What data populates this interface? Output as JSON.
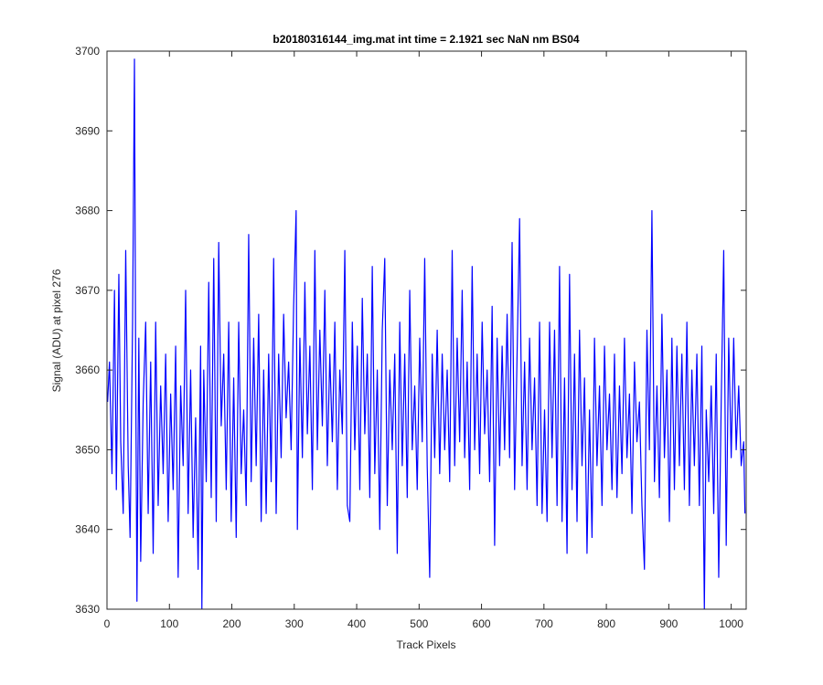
{
  "chart_data": {
    "type": "line",
    "title": "b20180316144_img.mat int time = 2.1921 sec  NaN nm BS04",
    "xlabel": "Track Pixels",
    "ylabel": "Signal (ADU) at pixel 276",
    "xlim": [
      0,
      1024
    ],
    "ylim": [
      3630,
      3700
    ],
    "xticks": [
      0,
      100,
      200,
      300,
      400,
      500,
      600,
      700,
      800,
      900,
      1000
    ],
    "yticks": [
      3630,
      3640,
      3650,
      3660,
      3670,
      3680,
      3690,
      3700
    ],
    "grid": false,
    "legend": "none",
    "series": [
      {
        "color": "#0000ff",
        "description": "approximately 1024 samples of noisy signal, mean ~3655 ADU, std ~7 ADU",
        "x_start": 1,
        "x_step": 1,
        "points": [
          [
            1,
            3656
          ],
          [
            4,
            3661
          ],
          [
            8,
            3647
          ],
          [
            12,
            3670
          ],
          [
            15,
            3645
          ],
          [
            19,
            3672
          ],
          [
            22,
            3651
          ],
          [
            26,
            3642
          ],
          [
            30,
            3675
          ],
          [
            34,
            3648
          ],
          [
            37,
            3639
          ],
          [
            41,
            3666
          ],
          [
            44,
            3699
          ],
          [
            46,
            3660
          ],
          [
            48,
            3631
          ],
          [
            51,
            3664
          ],
          [
            54,
            3636
          ],
          [
            58,
            3656
          ],
          [
            62,
            3666
          ],
          [
            66,
            3642
          ],
          [
            70,
            3661
          ],
          [
            74,
            3637
          ],
          [
            78,
            3666
          ],
          [
            82,
            3643
          ],
          [
            86,
            3658
          ],
          [
            90,
            3647
          ],
          [
            94,
            3662
          ],
          [
            98,
            3641
          ],
          [
            102,
            3657
          ],
          [
            106,
            3645
          ],
          [
            110,
            3663
          ],
          [
            114,
            3634
          ],
          [
            118,
            3658
          ],
          [
            122,
            3648
          ],
          [
            126,
            3670
          ],
          [
            130,
            3642
          ],
          [
            134,
            3660
          ],
          [
            138,
            3639
          ],
          [
            142,
            3654
          ],
          [
            146,
            3635
          ],
          [
            150,
            3663
          ],
          [
            152,
            3630
          ],
          [
            155,
            3660
          ],
          [
            159,
            3646
          ],
          [
            163,
            3671
          ],
          [
            167,
            3644
          ],
          [
            171,
            3674
          ],
          [
            175,
            3641
          ],
          [
            179,
            3676
          ],
          [
            183,
            3653
          ],
          [
            187,
            3662
          ],
          [
            191,
            3645
          ],
          [
            195,
            3666
          ],
          [
            199,
            3641
          ],
          [
            203,
            3659
          ],
          [
            207,
            3639
          ],
          [
            211,
            3666
          ],
          [
            215,
            3647
          ],
          [
            219,
            3655
          ],
          [
            223,
            3643
          ],
          [
            227,
            3677
          ],
          [
            231,
            3646
          ],
          [
            235,
            3664
          ],
          [
            239,
            3648
          ],
          [
            243,
            3667
          ],
          [
            247,
            3641
          ],
          [
            251,
            3660
          ],
          [
            255,
            3642
          ],
          [
            259,
            3662
          ],
          [
            263,
            3646
          ],
          [
            267,
            3674
          ],
          [
            271,
            3642
          ],
          [
            275,
            3662
          ],
          [
            279,
            3649
          ],
          [
            283,
            3667
          ],
          [
            287,
            3654
          ],
          [
            291,
            3661
          ],
          [
            295,
            3650
          ],
          [
            299,
            3668
          ],
          [
            303,
            3680
          ],
          [
            305,
            3640
          ],
          [
            309,
            3664
          ],
          [
            313,
            3649
          ],
          [
            317,
            3671
          ],
          [
            321,
            3652
          ],
          [
            325,
            3663
          ],
          [
            329,
            3645
          ],
          [
            333,
            3675
          ],
          [
            337,
            3650
          ],
          [
            341,
            3665
          ],
          [
            345,
            3653
          ],
          [
            349,
            3670
          ],
          [
            353,
            3648
          ],
          [
            357,
            3662
          ],
          [
            361,
            3651
          ],
          [
            365,
            3666
          ],
          [
            369,
            3645
          ],
          [
            373,
            3660
          ],
          [
            377,
            3652
          ],
          [
            381,
            3675
          ],
          [
            385,
            3643
          ],
          [
            389,
            3641
          ],
          [
            393,
            3666
          ],
          [
            397,
            3650
          ],
          [
            401,
            3663
          ],
          [
            405,
            3645
          ],
          [
            409,
            3669
          ],
          [
            413,
            3652
          ],
          [
            417,
            3662
          ],
          [
            421,
            3644
          ],
          [
            425,
            3673
          ],
          [
            429,
            3647
          ],
          [
            433,
            3660
          ],
          [
            437,
            3640
          ],
          [
            441,
            3665
          ],
          [
            445,
            3674
          ],
          [
            449,
            3643
          ],
          [
            453,
            3660
          ],
          [
            457,
            3650
          ],
          [
            461,
            3662
          ],
          [
            465,
            3637
          ],
          [
            469,
            3666
          ],
          [
            473,
            3648
          ],
          [
            477,
            3662
          ],
          [
            481,
            3644
          ],
          [
            485,
            3670
          ],
          [
            489,
            3650
          ],
          [
            493,
            3658
          ],
          [
            497,
            3645
          ],
          [
            501,
            3664
          ],
          [
            505,
            3651
          ],
          [
            509,
            3674
          ],
          [
            513,
            3648
          ],
          [
            517,
            3634
          ],
          [
            521,
            3662
          ],
          [
            525,
            3649
          ],
          [
            529,
            3665
          ],
          [
            533,
            3647
          ],
          [
            537,
            3662
          ],
          [
            541,
            3650
          ],
          [
            545,
            3660
          ],
          [
            549,
            3646
          ],
          [
            553,
            3675
          ],
          [
            557,
            3648
          ],
          [
            561,
            3664
          ],
          [
            565,
            3651
          ],
          [
            569,
            3670
          ],
          [
            573,
            3649
          ],
          [
            577,
            3661
          ],
          [
            581,
            3645
          ],
          [
            585,
            3673
          ],
          [
            589,
            3650
          ],
          [
            593,
            3662
          ],
          [
            597,
            3647
          ],
          [
            601,
            3666
          ],
          [
            605,
            3652
          ],
          [
            609,
            3660
          ],
          [
            613,
            3646
          ],
          [
            617,
            3668
          ],
          [
            621,
            3638
          ],
          [
            625,
            3664
          ],
          [
            629,
            3648
          ],
          [
            633,
            3663
          ],
          [
            637,
            3650
          ],
          [
            641,
            3667
          ],
          [
            645,
            3649
          ],
          [
            649,
            3676
          ],
          [
            653,
            3645
          ],
          [
            657,
            3662
          ],
          [
            661,
            3679
          ],
          [
            665,
            3648
          ],
          [
            669,
            3661
          ],
          [
            673,
            3645
          ],
          [
            677,
            3664
          ],
          [
            681,
            3650
          ],
          [
            685,
            3659
          ],
          [
            689,
            3643
          ],
          [
            693,
            3666
          ],
          [
            697,
            3642
          ],
          [
            701,
            3655
          ],
          [
            705,
            3641
          ],
          [
            709,
            3666
          ],
          [
            713,
            3649
          ],
          [
            717,
            3665
          ],
          [
            721,
            3643
          ],
          [
            725,
            3673
          ],
          [
            729,
            3641
          ],
          [
            733,
            3659
          ],
          [
            737,
            3637
          ],
          [
            741,
            3672
          ],
          [
            745,
            3645
          ],
          [
            749,
            3662
          ],
          [
            753,
            3641
          ],
          [
            757,
            3665
          ],
          [
            761,
            3648
          ],
          [
            765,
            3659
          ],
          [
            769,
            3637
          ],
          [
            773,
            3655
          ],
          [
            777,
            3639
          ],
          [
            781,
            3664
          ],
          [
            785,
            3648
          ],
          [
            789,
            3658
          ],
          [
            793,
            3643
          ],
          [
            797,
            3663
          ],
          [
            801,
            3650
          ],
          [
            805,
            3657
          ],
          [
            809,
            3645
          ],
          [
            813,
            3662
          ],
          [
            817,
            3644
          ],
          [
            821,
            3658
          ],
          [
            825,
            3647
          ],
          [
            829,
            3664
          ],
          [
            833,
            3649
          ],
          [
            837,
            3657
          ],
          [
            841,
            3642
          ],
          [
            845,
            3661
          ],
          [
            849,
            3651
          ],
          [
            853,
            3656
          ],
          [
            857,
            3643
          ],
          [
            861,
            3635
          ],
          [
            865,
            3665
          ],
          [
            869,
            3650
          ],
          [
            873,
            3680
          ],
          [
            877,
            3646
          ],
          [
            881,
            3658
          ],
          [
            885,
            3644
          ],
          [
            889,
            3667
          ],
          [
            893,
            3649
          ],
          [
            897,
            3660
          ],
          [
            901,
            3641
          ],
          [
            905,
            3664
          ],
          [
            909,
            3645
          ],
          [
            913,
            3663
          ],
          [
            917,
            3648
          ],
          [
            921,
            3662
          ],
          [
            925,
            3645
          ],
          [
            929,
            3666
          ],
          [
            933,
            3643
          ],
          [
            937,
            3660
          ],
          [
            941,
            3648
          ],
          [
            945,
            3662
          ],
          [
            949,
            3643
          ],
          [
            953,
            3663
          ],
          [
            957,
            3630
          ],
          [
            960,
            3655
          ],
          [
            964,
            3646
          ],
          [
            968,
            3658
          ],
          [
            972,
            3642
          ],
          [
            976,
            3662
          ],
          [
            980,
            3634
          ],
          [
            984,
            3656
          ],
          [
            988,
            3675
          ],
          [
            992,
            3638
          ],
          [
            996,
            3664
          ],
          [
            1000,
            3649
          ],
          [
            1004,
            3664
          ],
          [
            1008,
            3650
          ],
          [
            1012,
            3658
          ],
          [
            1016,
            3648
          ],
          [
            1020,
            3651
          ],
          [
            1022,
            3642
          ]
        ]
      }
    ]
  }
}
